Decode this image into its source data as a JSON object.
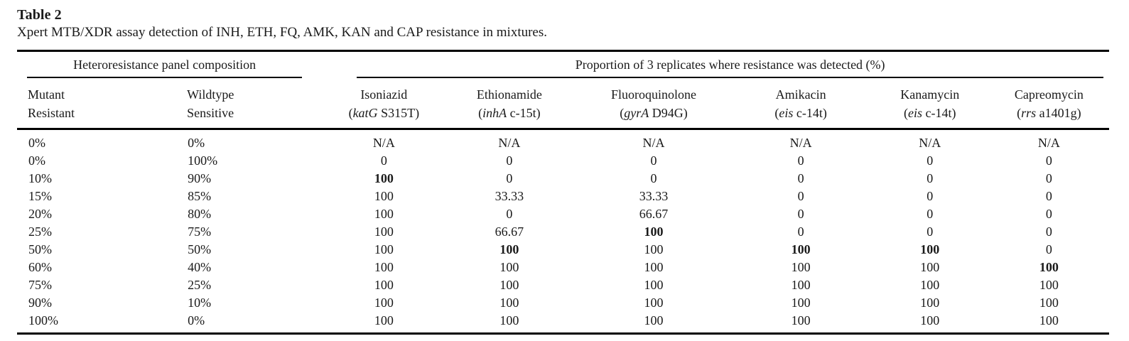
{
  "title": "Table 2",
  "caption": "Xpert MTB/XDR assay detection of INH, ETH, FQ, AMK, KAN and CAP resistance in mixtures.",
  "colors": {
    "text": "#1a1a1a",
    "rule": "#000000",
    "background": "#ffffff"
  },
  "table": {
    "group_headers": {
      "left": "Heteroresistance panel composition",
      "right": "Proportion of 3 replicates where resistance was detected (%)"
    },
    "panel_columns": [
      {
        "line1": "Mutant",
        "line2": "Resistant"
      },
      {
        "line1": "Wildtype",
        "line2": "Sensitive"
      }
    ],
    "drug_columns": [
      {
        "drug": "Isoniazid",
        "pre": "(",
        "gene": "katG",
        "post": " S315T)"
      },
      {
        "drug": "Ethionamide",
        "pre": "(",
        "gene": "inhA",
        "post": " c-15t)"
      },
      {
        "drug": "Fluoroquinolone",
        "pre": "(",
        "gene": "gyrA",
        "post": " D94G)"
      },
      {
        "drug": "Amikacin",
        "pre": "(",
        "gene": "eis",
        "post": " c-14t)"
      },
      {
        "drug": "Kanamycin",
        "pre": "(",
        "gene": "eis",
        "post": " c-14t)"
      },
      {
        "drug": "Capreomycin",
        "pre": "(",
        "gene": "rrs",
        "post": " a1401g)"
      }
    ],
    "rows": [
      {
        "mutant": "0%",
        "wildtype": "0%",
        "values": [
          "N/A",
          "N/A",
          "N/A",
          "N/A",
          "N/A",
          "N/A"
        ],
        "bold": []
      },
      {
        "mutant": "0%",
        "wildtype": "100%",
        "values": [
          "0",
          "0",
          "0",
          "0",
          "0",
          "0"
        ],
        "bold": []
      },
      {
        "mutant": "10%",
        "wildtype": "90%",
        "values": [
          "100",
          "0",
          "0",
          "0",
          "0",
          "0"
        ],
        "bold": [
          0
        ]
      },
      {
        "mutant": "15%",
        "wildtype": "85%",
        "values": [
          "100",
          "33.33",
          "33.33",
          "0",
          "0",
          "0"
        ],
        "bold": []
      },
      {
        "mutant": "20%",
        "wildtype": "80%",
        "values": [
          "100",
          "0",
          "66.67",
          "0",
          "0",
          "0"
        ],
        "bold": []
      },
      {
        "mutant": "25%",
        "wildtype": "75%",
        "values": [
          "100",
          "66.67",
          "100",
          "0",
          "0",
          "0"
        ],
        "bold": [
          2
        ]
      },
      {
        "mutant": "50%",
        "wildtype": "50%",
        "values": [
          "100",
          "100",
          "100",
          "100",
          "100",
          "0"
        ],
        "bold": [
          1,
          3,
          4
        ]
      },
      {
        "mutant": "60%",
        "wildtype": "40%",
        "values": [
          "100",
          "100",
          "100",
          "100",
          "100",
          "100"
        ],
        "bold": [
          5
        ]
      },
      {
        "mutant": "75%",
        "wildtype": "25%",
        "values": [
          "100",
          "100",
          "100",
          "100",
          "100",
          "100"
        ],
        "bold": []
      },
      {
        "mutant": "90%",
        "wildtype": "10%",
        "values": [
          "100",
          "100",
          "100",
          "100",
          "100",
          "100"
        ],
        "bold": []
      },
      {
        "mutant": "100%",
        "wildtype": "0%",
        "values": [
          "100",
          "100",
          "100",
          "100",
          "100",
          "100"
        ],
        "bold": []
      }
    ]
  }
}
